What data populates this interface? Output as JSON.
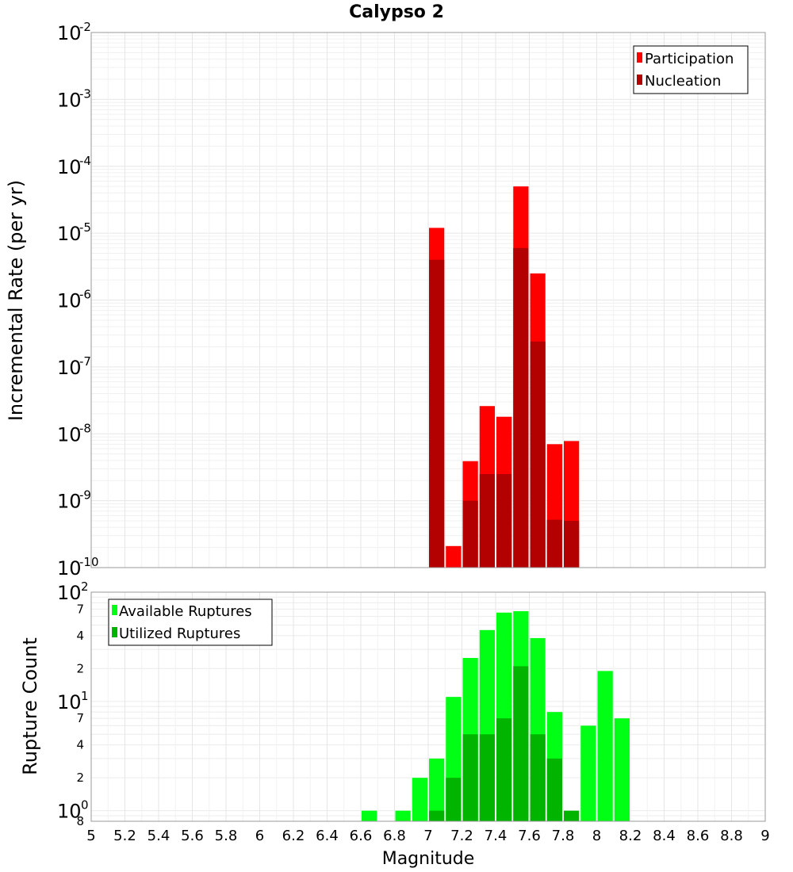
{
  "title": "Calypso 2",
  "xlabel": "Magnitude",
  "colors": {
    "participation": "#ff0000",
    "nucleation": "#b30000",
    "available": "#00ff14",
    "utilized": "#00b400"
  },
  "chart_data": [
    {
      "type": "bar",
      "ylabel": "Incremental Rate (per yr)",
      "yscale": "log",
      "ylim": [
        1e-10,
        0.01
      ],
      "xlim": [
        5,
        9
      ],
      "legend": "top-right",
      "grid": true,
      "series": [
        {
          "name": "Participation",
          "points": [
            [
              7.05,
              1.2e-05
            ],
            [
              7.15,
              2.1e-10
            ],
            [
              7.25,
              3.9e-09
            ],
            [
              7.35,
              2.6e-08
            ],
            [
              7.45,
              1.8e-08
            ],
            [
              7.55,
              5e-05
            ],
            [
              7.65,
              2.5e-06
            ],
            [
              7.75,
              7e-09
            ],
            [
              7.85,
              7.8e-09
            ]
          ]
        },
        {
          "name": "Nucleation",
          "points": [
            [
              7.05,
              4e-06
            ],
            [
              7.25,
              1e-09
            ],
            [
              7.35,
              2.5e-09
            ],
            [
              7.45,
              2.5e-09
            ],
            [
              7.55,
              6e-06
            ],
            [
              7.65,
              2.4e-07
            ],
            [
              7.75,
              5.2e-10
            ],
            [
              7.85,
              5e-10
            ]
          ]
        }
      ]
    },
    {
      "type": "bar",
      "ylabel": "Rupture Count",
      "yscale": "log",
      "ylim": [
        0.8,
        100
      ],
      "xlim": [
        5,
        9
      ],
      "legend": "top-left",
      "grid": true,
      "series": [
        {
          "name": "Available Ruptures",
          "points": [
            [
              6.65,
              1
            ],
            [
              6.85,
              1
            ],
            [
              6.95,
              2
            ],
            [
              7.05,
              3
            ],
            [
              7.15,
              11
            ],
            [
              7.25,
              25
            ],
            [
              7.35,
              45
            ],
            [
              7.45,
              65
            ],
            [
              7.55,
              67
            ],
            [
              7.65,
              38
            ],
            [
              7.75,
              8
            ],
            [
              7.95,
              6
            ],
            [
              8.05,
              19
            ],
            [
              8.15,
              7
            ]
          ]
        },
        {
          "name": "Utilized Ruptures",
          "points": [
            [
              7.05,
              1
            ],
            [
              7.15,
              2
            ],
            [
              7.25,
              5
            ],
            [
              7.35,
              5
            ],
            [
              7.45,
              7
            ],
            [
              7.55,
              21
            ],
            [
              7.65,
              5
            ],
            [
              7.75,
              3
            ],
            [
              7.85,
              1
            ]
          ]
        }
      ]
    }
  ],
  "xticks": [
    "5",
    "5.2",
    "5.4",
    "5.6",
    "5.8",
    "6",
    "6.2",
    "6.4",
    "6.6",
    "6.8",
    "7",
    "7.2",
    "7.4",
    "7.6",
    "7.8",
    "8",
    "8.2",
    "8.4",
    "8.6",
    "8.8",
    "9"
  ],
  "top_yticks": [
    {
      "base": "10",
      "exp": "-2",
      "value": 0.01
    },
    {
      "base": "10",
      "exp": "-3",
      "value": 0.001
    },
    {
      "base": "10",
      "exp": "-4",
      "value": 0.0001
    },
    {
      "base": "10",
      "exp": "-5",
      "value": 1e-05
    },
    {
      "base": "10",
      "exp": "-6",
      "value": 1e-06
    },
    {
      "base": "10",
      "exp": "-7",
      "value": 1e-07
    },
    {
      "base": "10",
      "exp": "-8",
      "value": 1e-08
    },
    {
      "base": "10",
      "exp": "-9",
      "value": 1e-09
    },
    {
      "base": "10",
      "exp": "-10",
      "value": 1e-10
    }
  ],
  "bottom_yticks": {
    "major": [
      {
        "base": "10",
        "exp": "2",
        "value": 100
      },
      {
        "base": "10",
        "exp": "1",
        "value": 10
      },
      {
        "base": "10",
        "exp": "0",
        "value": 1
      }
    ],
    "minor": [
      {
        "label": "7",
        "value": 70
      },
      {
        "label": "4",
        "value": 40
      },
      {
        "label": "2",
        "value": 20
      },
      {
        "label": "7",
        "value": 7
      },
      {
        "label": "4",
        "value": 4
      },
      {
        "label": "2",
        "value": 2
      },
      {
        "label": "8",
        "value": 0.8
      }
    ]
  }
}
